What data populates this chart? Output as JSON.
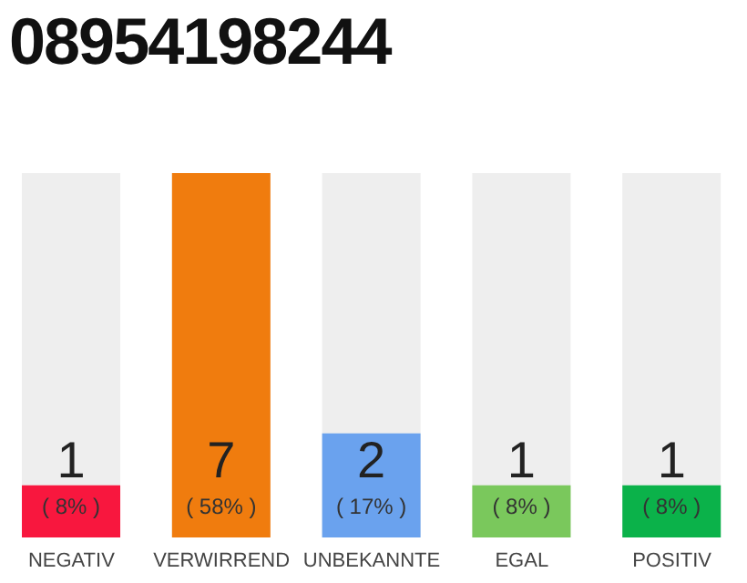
{
  "chart_data": {
    "type": "bar",
    "title": "08954198244",
    "categories": [
      "NEGATIV",
      "VERWIRREND",
      "UNBEKANNTE",
      "EGAL",
      "POSITIV"
    ],
    "values": [
      1,
      7,
      2,
      1,
      1
    ],
    "colors": [
      "#f8173e",
      "#f07c0e",
      "#6aa2ee",
      "#7ac85c",
      "#0bb24a"
    ],
    "data_labels": true,
    "annotations": [
      "( 8% )",
      "( 58% )",
      "( 17% )",
      "( 8% )",
      "( 8% )"
    ]
  }
}
